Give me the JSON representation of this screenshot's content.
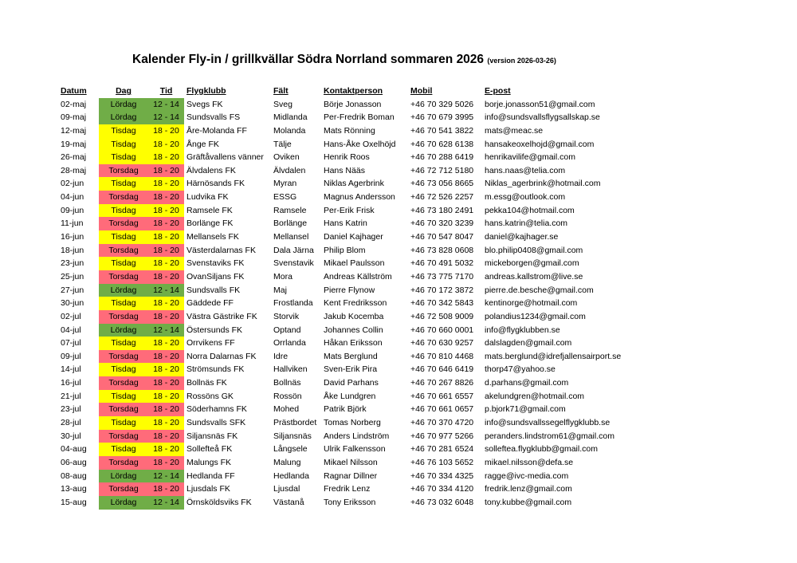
{
  "title": {
    "main": "Kalender Fly-in / grillkvällar Södra Norrland sommaren 2026",
    "version": "(version 2026-03-26)"
  },
  "headers": [
    "Datum",
    "Dag",
    "Tid",
    "Flygklubb",
    "Fält",
    "Kontaktperson",
    "Mobil",
    "E-post"
  ],
  "day_colors": {
    "Lördag": "#70ad47",
    "Tisdag": "#ffff00",
    "Torsdag": "#ff6b7a"
  },
  "rows": [
    {
      "datum": "02-maj",
      "dag": "Lördag",
      "tid": "12 - 14",
      "klubb": "Svegs FK",
      "falt": "Sveg",
      "kontakt": "Börje Jonasson",
      "mobil": "+46 70 329 5026",
      "epost": "borje.jonasson51@gmail.com"
    },
    {
      "datum": "09-maj",
      "dag": "Lördag",
      "tid": "12 - 14",
      "klubb": "Sundsvalls FS",
      "falt": "Midlanda",
      "kontakt": "Per-Fredrik Boman",
      "mobil": "+46 70 679 3995",
      "epost": "info@sundsvallsflygsallskap.se"
    },
    {
      "datum": "12-maj",
      "dag": "Tisdag",
      "tid": "18 - 20",
      "klubb": "Åre-Molanda FF",
      "falt": "Molanda",
      "kontakt": "Mats Rönning",
      "mobil": "+46 70 541 3822",
      "epost": "mats@meac.se"
    },
    {
      "datum": "19-maj",
      "dag": "Tisdag",
      "tid": "18 - 20",
      "klubb": "Ånge FK",
      "falt": "Tälje",
      "kontakt": "Hans-Åke Oxelhöjd",
      "mobil": "+46 70 628 6138",
      "epost": "hansakeoxelhojd@gmail.com"
    },
    {
      "datum": "26-maj",
      "dag": "Tisdag",
      "tid": "18 - 20",
      "klubb": "Gräftåvallens vänner",
      "falt": "Oviken",
      "kontakt": "Henrik Roos",
      "mobil": "+46 70 288 6419",
      "epost": "henrikavilife@gmail.com"
    },
    {
      "datum": "28-maj",
      "dag": "Torsdag",
      "tid": "18 - 20",
      "klubb": "Älvdalens FK",
      "falt": "Älvdalen",
      "kontakt": "Hans Nääs",
      "mobil": "+46 72 712 5180",
      "epost": "hans.naas@telia.com"
    },
    {
      "datum": "02-jun",
      "dag": "Tisdag",
      "tid": "18 - 20",
      "klubb": "Härnösands FK",
      "falt": "Myran",
      "kontakt": "Niklas Agerbrink",
      "mobil": "+46 73 056 8665",
      "epost": "Niklas_agerbrink@hotmail.com"
    },
    {
      "datum": "04-jun",
      "dag": "Torsdag",
      "tid": "18 - 20",
      "klubb": "Ludvika FK",
      "falt": "ESSG",
      "kontakt": "Magnus Andersson",
      "mobil": "+46 72 526 2257",
      "epost": "m.essg@outlook.com"
    },
    {
      "datum": "09-jun",
      "dag": "Tisdag",
      "tid": "18 - 20",
      "klubb": "Ramsele FK",
      "falt": "Ramsele",
      "kontakt": "Per-Erik Frisk",
      "mobil": "+46 73 180 2491",
      "epost": "pekka104@hotmail.com"
    },
    {
      "datum": "11-jun",
      "dag": "Torsdag",
      "tid": "18 - 20",
      "klubb": "Borlänge FK",
      "falt": "Borlänge",
      "kontakt": "Hans Katrin",
      "mobil": "+46 70 320 3239",
      "epost": "hans.katrin@telia.com"
    },
    {
      "datum": "16-jun",
      "dag": "Tisdag",
      "tid": "18 - 20",
      "klubb": "Mellansels FK",
      "falt": "Mellansel",
      "kontakt": "Daniel Kajhager",
      "mobil": "+46 70 547 8047",
      "epost": "daniel@kajhager.se"
    },
    {
      "datum": "18-jun",
      "dag": "Torsdag",
      "tid": "18 - 20",
      "klubb": "Västerdalarnas FK",
      "falt": "Dala Järna",
      "kontakt": "Philip Blom",
      "mobil": "+46 73 828 0608",
      "epost": "blo.philip0408@gmail.com"
    },
    {
      "datum": "23-jun",
      "dag": "Tisdag",
      "tid": "18 - 20",
      "klubb": "Svenstaviks FK",
      "falt": "Svenstavik",
      "kontakt": "Mikael Paulsson",
      "mobil": "+46 70 491 5032",
      "epost": "mickeborgen@gmail.com"
    },
    {
      "datum": "25-jun",
      "dag": "Torsdag",
      "tid": "18 - 20",
      "klubb": "OvanSiljans FK",
      "falt": "Mora",
      "kontakt": "Andreas Källström",
      "mobil": "+46 73 775 7170",
      "epost": "andreas.kallstrom@live.se"
    },
    {
      "datum": "27-jun",
      "dag": "Lördag",
      "tid": "12 - 14",
      "klubb": "Sundsvalls FK",
      "falt": "Maj",
      "kontakt": "Pierre Flynow",
      "mobil": "+46 70 172 3872",
      "epost": "pierre.de.besche@gmail.com"
    },
    {
      "datum": "30-jun",
      "dag": "Tisdag",
      "tid": "18 - 20",
      "klubb": "Gäddede FF",
      "falt": "Frostlanda",
      "kontakt": "Kent Fredriksson",
      "mobil": "+46 70 342 5843",
      "epost": "kentinorge@hotmail.com"
    },
    {
      "datum": "02-jul",
      "dag": "Torsdag",
      "tid": "18 - 20",
      "klubb": "Västra Gästrike FK",
      "falt": "Storvik",
      "kontakt": "Jakub Kocemba",
      "mobil": "+46 72 508 9009",
      "epost": "polandius1234@gmail.com"
    },
    {
      "datum": "04-jul",
      "dag": "Lördag",
      "tid": "12 - 14",
      "klubb": "Östersunds FK",
      "falt": "Optand",
      "kontakt": "Johannes Collin",
      "mobil": "+46 70 660 0001",
      "epost": "info@flygklubben.se"
    },
    {
      "datum": "07-jul",
      "dag": "Tisdag",
      "tid": "18 - 20",
      "klubb": "Orrvikens FF",
      "falt": "Orrlanda",
      "kontakt": "Håkan Eriksson",
      "mobil": "+46 70 630 9257",
      "epost": "dalslagden@gmail.com"
    },
    {
      "datum": "09-jul",
      "dag": "Torsdag",
      "tid": "18 - 20",
      "klubb": "Norra Dalarnas FK",
      "falt": "Idre",
      "kontakt": "Mats Berglund",
      "mobil": "+46 70 810 4468",
      "epost": "mats.berglund@idrefjallensairport.se"
    },
    {
      "datum": "14-jul",
      "dag": "Tisdag",
      "tid": "18 - 20",
      "klubb": "Strömsunds FK",
      "falt": "Hallviken",
      "kontakt": "Sven-Erik Pira",
      "mobil": "+46 70 646 6419",
      "epost": "thorp47@yahoo.se"
    },
    {
      "datum": "16-jul",
      "dag": "Torsdag",
      "tid": "18 - 20",
      "klubb": "Bollnäs FK",
      "falt": "Bollnäs",
      "kontakt": "David Parhans",
      "mobil": "+46 70 267 8826",
      "epost": "d.parhans@gmail.com"
    },
    {
      "datum": "21-jul",
      "dag": "Tisdag",
      "tid": "18 - 20",
      "klubb": "Rossöns GK",
      "falt": "Rossön",
      "kontakt": "Åke Lundgren",
      "mobil": "+46 70 661 6557",
      "epost": "akelundgren@hotmail.com"
    },
    {
      "datum": "23-jul",
      "dag": "Torsdag",
      "tid": "18 - 20",
      "klubb": "Söderhamns FK",
      "falt": "Mohed",
      "kontakt": "Patrik Björk",
      "mobil": "+46 70 661 0657",
      "epost": "p.bjork71@gmail.com"
    },
    {
      "datum": "28-jul",
      "dag": "Tisdag",
      "tid": "18 - 20",
      "klubb": "Sundsvalls SFK",
      "falt": "Prästbordet",
      "kontakt": "Tomas Norberg",
      "mobil": "+46 70 370 4720",
      "epost": "info@sundsvallssegelflygklubb.se"
    },
    {
      "datum": "30-jul",
      "dag": "Torsdag",
      "tid": "18 - 20",
      "klubb": "Siljansnäs FK",
      "falt": "Siljansnäs",
      "kontakt": "Anders Lindström",
      "mobil": "+46 70 977 5266",
      "epost": "peranders.lindstrom61@gmail.com"
    },
    {
      "datum": "04-aug",
      "dag": "Tisdag",
      "tid": "18 - 20",
      "klubb": "Sollefteå FK",
      "falt": "Långsele",
      "kontakt": "Ulrik Falkensson",
      "mobil": "+46 70 281 6524",
      "epost": "solleftea.flygklubb@gmail.com"
    },
    {
      "datum": "06-aug",
      "dag": "Torsdag",
      "tid": "18 - 20",
      "klubb": "Malungs FK",
      "falt": "Malung",
      "kontakt": "Mikael Nilsson",
      "mobil": "+46 76 103 5652",
      "epost": "mikael.nilsson@defa.se"
    },
    {
      "datum": "08-aug",
      "dag": "Lördag",
      "tid": "12 - 14",
      "klubb": "Hedlanda FF",
      "falt": "Hedlanda",
      "kontakt": "Ragnar Dillner",
      "mobil": "+46 70 334 4325",
      "epost": "ragge@ivc-media.com"
    },
    {
      "datum": "13-aug",
      "dag": "Torsdag",
      "tid": "18 - 20",
      "klubb": "Ljusdals FK",
      "falt": "Ljusdal",
      "kontakt": "Fredrik Lenz",
      "mobil": "+46 70 334 4120",
      "epost": "fredrik.lenz@gmail.com"
    },
    {
      "datum": "15-aug",
      "dag": "Lördag",
      "tid": "12 - 14",
      "klubb": "Örnsköldsviks FK",
      "falt": "Västanå",
      "kontakt": "Tony Eriksson",
      "mobil": "+46 73 032 6048",
      "epost": "tony.kubbe@gmail.com"
    }
  ]
}
